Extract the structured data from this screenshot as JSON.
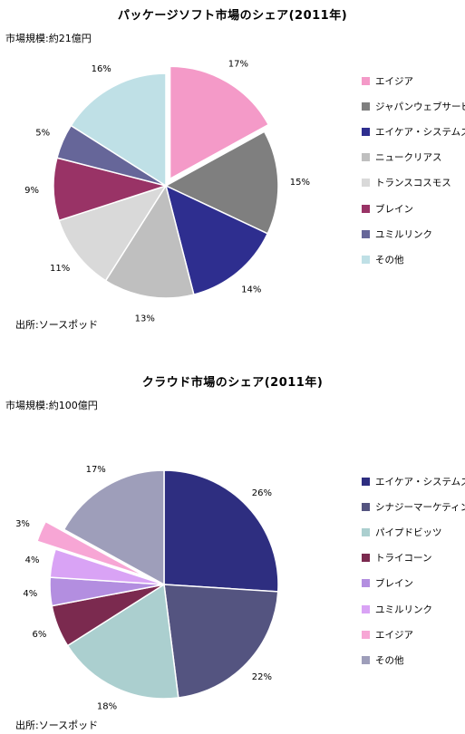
{
  "chart_data": [
    {
      "type": "pie",
      "title": "パッケージソフト市場のシェア(2011年)",
      "market_size": "市場規模:約21億円",
      "source": "出所:ソースポッド",
      "exploded": "エイジア",
      "slices": [
        {
          "label": "エイジア",
          "value": 17,
          "value_label": "17%",
          "color": "#f49ac8"
        },
        {
          "label": "ジャパンウェブサービス",
          "value": 15,
          "value_label": "15%",
          "color": "#7f7f7f"
        },
        {
          "label": "エイケア・システムズ",
          "value": 14,
          "value_label": "14%",
          "color": "#2e2e8f"
        },
        {
          "label": "ニュークリアス",
          "value": 13,
          "value_label": "13%",
          "color": "#bfbfbf"
        },
        {
          "label": "トランスコスモス",
          "value": 11,
          "value_label": "11%",
          "color": "#d9d9d9"
        },
        {
          "label": "ブレイン",
          "value": 9,
          "value_label": "9%",
          "color": "#993366"
        },
        {
          "label": "ユミルリンク",
          "value": 5,
          "value_label": "5%",
          "color": "#666699"
        },
        {
          "label": "その他",
          "value": 16,
          "value_label": "16%",
          "color": "#bfe0e6"
        }
      ]
    },
    {
      "type": "pie",
      "title": "クラウド市場のシェア(2011年)",
      "market_size": "市場規模:約100億円",
      "source": "出所:ソースポッド",
      "exploded": "エイジア",
      "slices": [
        {
          "label": "エイケア・システムズ",
          "value": 26,
          "value_label": "26%",
          "color": "#2e2e80"
        },
        {
          "label": "シナジーマーケティング",
          "value": 22,
          "value_label": "22%",
          "color": "#545480"
        },
        {
          "label": "パイプドビッツ",
          "value": 18,
          "value_label": "18%",
          "color": "#abcfcf"
        },
        {
          "label": "トライコーン",
          "value": 6,
          "value_label": "6%",
          "color": "#7b2a4f"
        },
        {
          "label": "ブレイン",
          "value": 4,
          "value_label": "4%",
          "color": "#b38ee0"
        },
        {
          "label": "ユミルリンク",
          "value": 4,
          "value_label": "4%",
          "color": "#d9a3f5"
        },
        {
          "label": "エイジア",
          "value": 3,
          "value_label": "3%",
          "color": "#f7a6d5"
        },
        {
          "label": "その他",
          "value": 17,
          "value_label": "17%",
          "color": "#9e9eba"
        }
      ]
    }
  ]
}
